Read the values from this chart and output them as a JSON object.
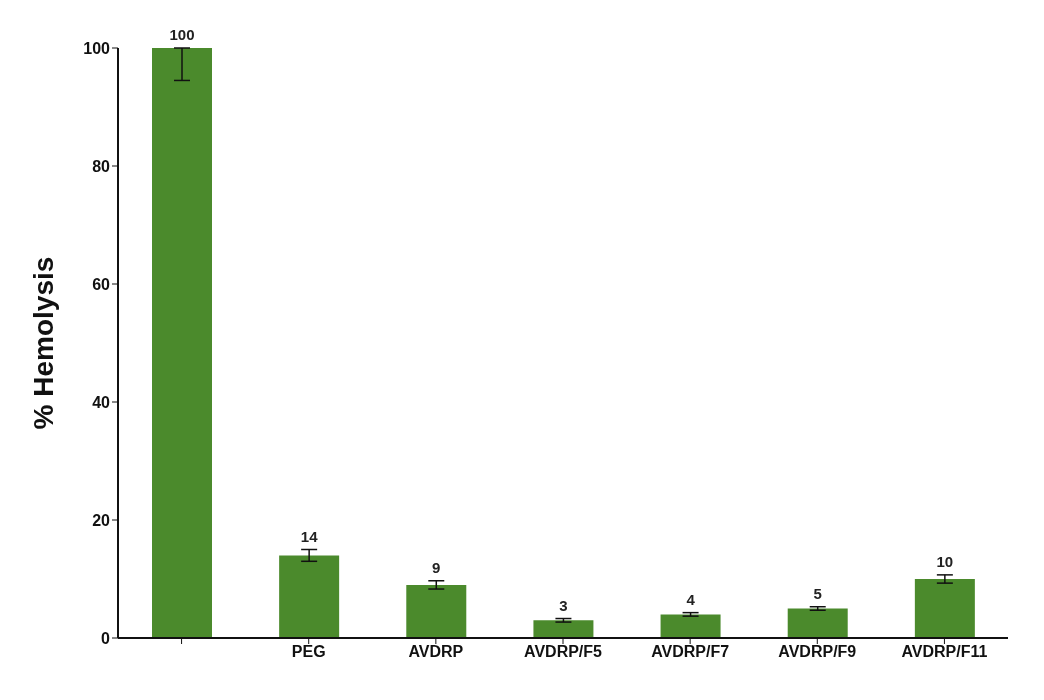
{
  "chart_data": {
    "type": "bar",
    "ylabel": "% Hemolysis",
    "categories": [
      null,
      "PEG",
      "AVDRP",
      "AVDRP/F5",
      "AVDRP/F7",
      "AVDRP/F9",
      "AVDRP/F11"
    ],
    "values": [
      100,
      14,
      9,
      3,
      4,
      5,
      10
    ],
    "errors": [
      [
        94.5,
        100
      ],
      1,
      0.7,
      0.3,
      0.3,
      0.3,
      0.7
    ],
    "color": "#4b8a2c",
    "ylim": [
      0,
      100
    ],
    "yticks": [
      0,
      20,
      40,
      60,
      80,
      100
    ],
    "grid": false,
    "data_labels": true
  }
}
